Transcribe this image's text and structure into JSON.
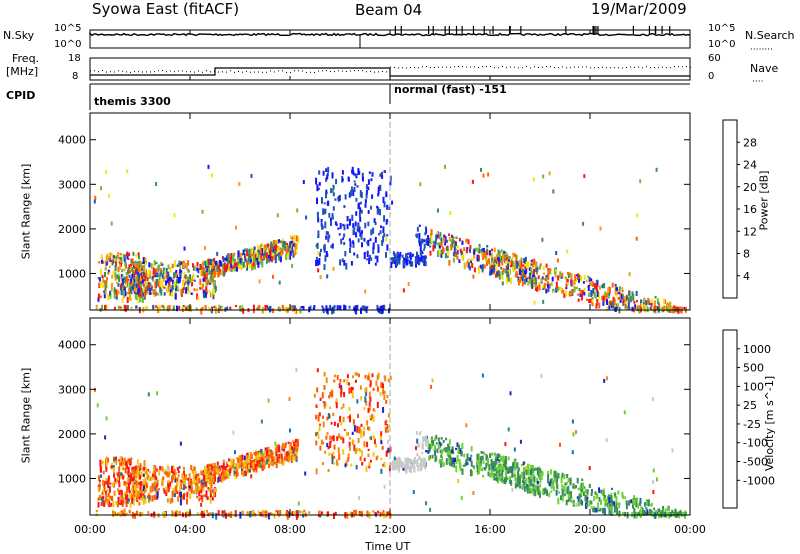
{
  "header": {
    "title": "Syowa East (fitACF)",
    "beam": "Beam 04",
    "date": "19/Mar/2009"
  },
  "top_panels": {
    "nsky_label": "N.Sky",
    "nsky_top": "10^5",
    "nsky_bottom": "10^0",
    "nsearch_label": "N.Search",
    "nsearch_top": "10^5",
    "nsearch_bottom": "10^0",
    "freq_label": "Freq.",
    "freq_unit": "[MHz]",
    "freq_top": "18",
    "freq_bottom": "8",
    "nave_label": "Nave",
    "nave_top": "60",
    "nave_bottom": "0",
    "cpid_label": "CPID",
    "cpid_mode1": "themis 3300",
    "cpid_mode2": "normal (fast) -151"
  },
  "chart_data": [
    {
      "type": "heatmap",
      "name": "power",
      "ylabel": "Slant Range [km]",
      "xlabel": "Time UT",
      "x_ticks": [
        "00:00",
        "04:00",
        "08:00",
        "12:00",
        "16:00",
        "20:00",
        "00:00"
      ],
      "y_ticks": [
        "1000",
        "2000",
        "3000",
        "4000"
      ],
      "ylim": [
        180,
        4600
      ],
      "colorbar_label": "Power [dB]",
      "colorbar_ticks": [
        "4",
        "8",
        "12",
        "16",
        "20",
        "24",
        "28"
      ],
      "colors": [
        "#1414ff",
        "#2055b4",
        "#3c8c5a",
        "#6ebe32",
        "#f0e614",
        "#f0a014",
        "#ff6400",
        "#ff1414"
      ]
    },
    {
      "type": "heatmap",
      "name": "velocity",
      "ylabel": "Slant Range [km]",
      "xlabel": "Time UT",
      "x_ticks": [
        "00:00",
        "04:00",
        "08:00",
        "12:00",
        "16:00",
        "20:00",
        "00:00"
      ],
      "y_ticks": [
        "1000",
        "2000",
        "3000",
        "4000"
      ],
      "ylim": [
        180,
        4600
      ],
      "colorbar_label": "Velocity [m s^-1]",
      "colorbar_ticks": [
        "1000",
        "500",
        "100",
        "25",
        "-25",
        "-100",
        "-500",
        "-1000"
      ],
      "colors": [
        "#1428c8",
        "#1e6eaa",
        "#3c8c5a",
        "#6ed232",
        "#c8c8c8",
        "#f0c814",
        "#f08c14",
        "#ff5a00",
        "#ff1414"
      ]
    }
  ],
  "x_axis_title": "Time UT"
}
